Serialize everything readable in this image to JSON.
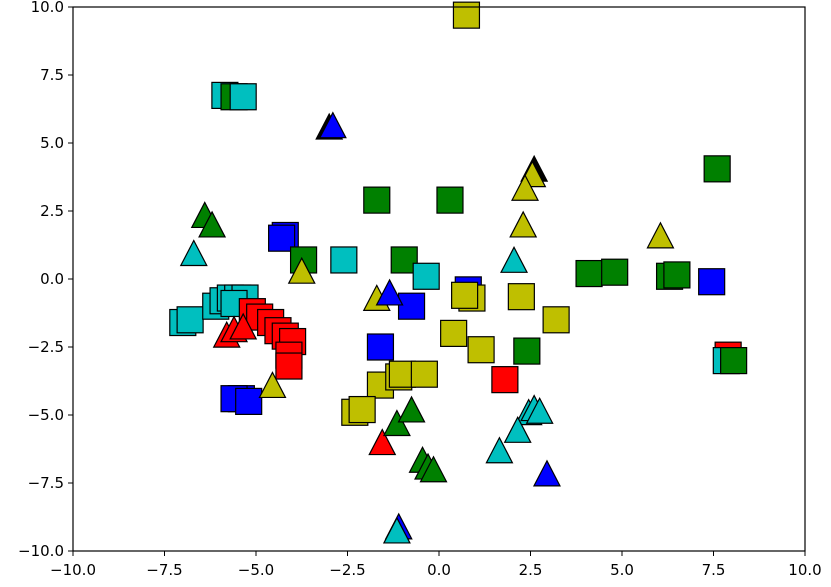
{
  "chart_data": {
    "type": "scatter",
    "title": "",
    "xlabel": "",
    "ylabel": "",
    "xlim": [
      -10,
      10
    ],
    "ylim": [
      -10,
      10
    ],
    "x_ticks": [
      -10.0,
      -7.5,
      -5.0,
      -2.5,
      0.0,
      2.5,
      5.0,
      7.5,
      10.0
    ],
    "y_ticks": [
      -10.0,
      -7.5,
      -5.0,
      -2.5,
      0.0,
      2.5,
      5.0,
      7.5,
      10.0
    ],
    "x_tick_labels": [
      "−10.0",
      "−7.5",
      "−5.0",
      "−2.5",
      "0.0",
      "2.5",
      "5.0",
      "7.5",
      "10.0"
    ],
    "y_tick_labels": [
      "−10.0",
      "−7.5",
      "−5.0",
      "−2.5",
      "0.0",
      "2.5",
      "5.0",
      "7.5",
      "10.0"
    ],
    "grid": false,
    "colors": {
      "red": "#ff0000",
      "blue": "#0000ff",
      "green": "#008000",
      "cyan": "#00bfbf",
      "yellow": "#bfbf00",
      "black": "#000000"
    },
    "points": [
      {
        "x": -7.0,
        "y": -1.6,
        "marker": "square",
        "color": "cyan"
      },
      {
        "x": -6.8,
        "y": -1.5,
        "marker": "square",
        "color": "cyan"
      },
      {
        "x": -6.1,
        "y": -1.0,
        "marker": "square",
        "color": "cyan"
      },
      {
        "x": -5.9,
        "y": -0.8,
        "marker": "square",
        "color": "cyan"
      },
      {
        "x": -5.7,
        "y": -0.7,
        "marker": "square",
        "color": "cyan"
      },
      {
        "x": -5.5,
        "y": -0.7,
        "marker": "square",
        "color": "cyan"
      },
      {
        "x": -5.3,
        "y": -0.7,
        "marker": "square",
        "color": "cyan"
      },
      {
        "x": -5.6,
        "y": -0.9,
        "marker": "square",
        "color": "cyan"
      },
      {
        "x": -5.85,
        "y": 6.75,
        "marker": "square",
        "color": "cyan"
      },
      {
        "x": -5.6,
        "y": 6.7,
        "marker": "square",
        "color": "green"
      },
      {
        "x": -5.35,
        "y": 6.7,
        "marker": "square",
        "color": "cyan"
      },
      {
        "x": -5.4,
        "y": -4.4,
        "marker": "square",
        "color": "blue"
      },
      {
        "x": -5.6,
        "y": -4.4,
        "marker": "square",
        "color": "blue"
      },
      {
        "x": -5.2,
        "y": -4.5,
        "marker": "square",
        "color": "blue"
      },
      {
        "x": -5.1,
        "y": -1.2,
        "marker": "square",
        "color": "red"
      },
      {
        "x": -4.9,
        "y": -1.4,
        "marker": "square",
        "color": "red"
      },
      {
        "x": -4.6,
        "y": -1.6,
        "marker": "square",
        "color": "red"
      },
      {
        "x": -4.4,
        "y": -1.9,
        "marker": "square",
        "color": "red"
      },
      {
        "x": -4.2,
        "y": -2.1,
        "marker": "square",
        "color": "red"
      },
      {
        "x": -4.0,
        "y": -2.3,
        "marker": "square",
        "color": "red"
      },
      {
        "x": -4.1,
        "y": -2.8,
        "marker": "square",
        "color": "red"
      },
      {
        "x": -4.1,
        "y": -3.2,
        "marker": "square",
        "color": "red"
      },
      {
        "x": -4.2,
        "y": 1.6,
        "marker": "square",
        "color": "blue"
      },
      {
        "x": -4.3,
        "y": 1.5,
        "marker": "square",
        "color": "blue"
      },
      {
        "x": -3.7,
        "y": 0.7,
        "marker": "square",
        "color": "green"
      },
      {
        "x": -2.6,
        "y": 0.7,
        "marker": "square",
        "color": "cyan"
      },
      {
        "x": -1.7,
        "y": 2.9,
        "marker": "square",
        "color": "green"
      },
      {
        "x": -0.95,
        "y": 0.7,
        "marker": "square",
        "color": "green"
      },
      {
        "x": -0.35,
        "y": 0.1,
        "marker": "square",
        "color": "cyan"
      },
      {
        "x": -0.75,
        "y": -1.0,
        "marker": "square",
        "color": "blue"
      },
      {
        "x": -1.6,
        "y": -2.5,
        "marker": "square",
        "color": "blue"
      },
      {
        "x": -1.6,
        "y": -3.9,
        "marker": "square",
        "color": "yellow"
      },
      {
        "x": -1.1,
        "y": -3.6,
        "marker": "square",
        "color": "yellow"
      },
      {
        "x": -1.0,
        "y": -3.5,
        "marker": "square",
        "color": "yellow"
      },
      {
        "x": -0.4,
        "y": -3.5,
        "marker": "square",
        "color": "yellow"
      },
      {
        "x": -2.3,
        "y": -4.9,
        "marker": "square",
        "color": "yellow"
      },
      {
        "x": -2.1,
        "y": -4.8,
        "marker": "square",
        "color": "yellow"
      },
      {
        "x": 0.3,
        "y": 2.9,
        "marker": "square",
        "color": "green"
      },
      {
        "x": 0.75,
        "y": 9.7,
        "marker": "square",
        "color": "yellow"
      },
      {
        "x": 0.8,
        "y": -0.4,
        "marker": "square",
        "color": "blue"
      },
      {
        "x": 0.9,
        "y": -0.7,
        "marker": "square",
        "color": "yellow"
      },
      {
        "x": 0.7,
        "y": -0.6,
        "marker": "square",
        "color": "yellow"
      },
      {
        "x": 0.4,
        "y": -2.0,
        "marker": "square",
        "color": "yellow"
      },
      {
        "x": 1.15,
        "y": -2.6,
        "marker": "square",
        "color": "yellow"
      },
      {
        "x": 2.25,
        "y": -0.65,
        "marker": "square",
        "color": "yellow"
      },
      {
        "x": 1.8,
        "y": -3.7,
        "marker": "square",
        "color": "red"
      },
      {
        "x": 2.4,
        "y": -2.65,
        "marker": "square",
        "color": "green"
      },
      {
        "x": 3.2,
        "y": -1.5,
        "marker": "square",
        "color": "yellow"
      },
      {
        "x": 4.1,
        "y": 0.2,
        "marker": "square",
        "color": "green"
      },
      {
        "x": 4.8,
        "y": 0.25,
        "marker": "square",
        "color": "green"
      },
      {
        "x": 6.3,
        "y": 0.1,
        "marker": "square",
        "color": "green"
      },
      {
        "x": 6.5,
        "y": 0.15,
        "marker": "square",
        "color": "green"
      },
      {
        "x": 7.6,
        "y": 4.05,
        "marker": "square",
        "color": "green"
      },
      {
        "x": 7.45,
        "y": -0.1,
        "marker": "square",
        "color": "blue"
      },
      {
        "x": 7.9,
        "y": -2.8,
        "marker": "square",
        "color": "red"
      },
      {
        "x": 7.85,
        "y": -3.0,
        "marker": "square",
        "color": "cyan"
      },
      {
        "x": 8.05,
        "y": -3.0,
        "marker": "square",
        "color": "green"
      },
      {
        "x": -3.0,
        "y": 5.55,
        "marker": "triangle",
        "color": "black"
      },
      {
        "x": -2.9,
        "y": 5.6,
        "marker": "triangle",
        "color": "blue"
      },
      {
        "x": -6.4,
        "y": 2.3,
        "marker": "triangle",
        "color": "green"
      },
      {
        "x": -6.2,
        "y": 1.95,
        "marker": "triangle",
        "color": "green"
      },
      {
        "x": -6.7,
        "y": 0.9,
        "marker": "triangle",
        "color": "cyan"
      },
      {
        "x": -3.75,
        "y": 0.25,
        "marker": "triangle",
        "color": "yellow"
      },
      {
        "x": -5.8,
        "y": -2.1,
        "marker": "triangle",
        "color": "red"
      },
      {
        "x": -5.6,
        "y": -1.9,
        "marker": "triangle",
        "color": "red"
      },
      {
        "x": -5.35,
        "y": -1.8,
        "marker": "triangle",
        "color": "red"
      },
      {
        "x": -4.55,
        "y": -3.95,
        "marker": "triangle",
        "color": "yellow"
      },
      {
        "x": -1.7,
        "y": -0.75,
        "marker": "triangle",
        "color": "yellow"
      },
      {
        "x": -1.35,
        "y": -0.55,
        "marker": "triangle",
        "color": "blue"
      },
      {
        "x": -1.55,
        "y": -6.05,
        "marker": "triangle",
        "color": "red"
      },
      {
        "x": -1.15,
        "y": -5.35,
        "marker": "triangle",
        "color": "green"
      },
      {
        "x": -0.75,
        "y": -4.85,
        "marker": "triangle",
        "color": "green"
      },
      {
        "x": -0.45,
        "y": -6.7,
        "marker": "triangle",
        "color": "green"
      },
      {
        "x": -0.3,
        "y": -6.95,
        "marker": "triangle",
        "color": "green"
      },
      {
        "x": -0.15,
        "y": -7.05,
        "marker": "triangle",
        "color": "green"
      },
      {
        "x": -1.1,
        "y": -9.15,
        "marker": "triangle",
        "color": "blue"
      },
      {
        "x": -1.15,
        "y": -9.3,
        "marker": "triangle",
        "color": "cyan"
      },
      {
        "x": 2.6,
        "y": 4.0,
        "marker": "triangle",
        "color": "black"
      },
      {
        "x": 2.55,
        "y": 3.8,
        "marker": "triangle",
        "color": "yellow"
      },
      {
        "x": 2.35,
        "y": 3.3,
        "marker": "triangle",
        "color": "yellow"
      },
      {
        "x": 2.3,
        "y": 1.95,
        "marker": "triangle",
        "color": "yellow"
      },
      {
        "x": 2.05,
        "y": 0.65,
        "marker": "triangle",
        "color": "cyan"
      },
      {
        "x": 2.45,
        "y": -4.95,
        "marker": "triangle",
        "color": "cyan"
      },
      {
        "x": 2.6,
        "y": -4.8,
        "marker": "triangle",
        "color": "cyan"
      },
      {
        "x": 2.75,
        "y": -4.9,
        "marker": "triangle",
        "color": "cyan"
      },
      {
        "x": 2.15,
        "y": -5.6,
        "marker": "triangle",
        "color": "cyan"
      },
      {
        "x": 1.65,
        "y": -6.35,
        "marker": "triangle",
        "color": "cyan"
      },
      {
        "x": 2.95,
        "y": -7.2,
        "marker": "triangle",
        "color": "blue"
      },
      {
        "x": 6.05,
        "y": 1.55,
        "marker": "triangle",
        "color": "yellow"
      }
    ]
  }
}
